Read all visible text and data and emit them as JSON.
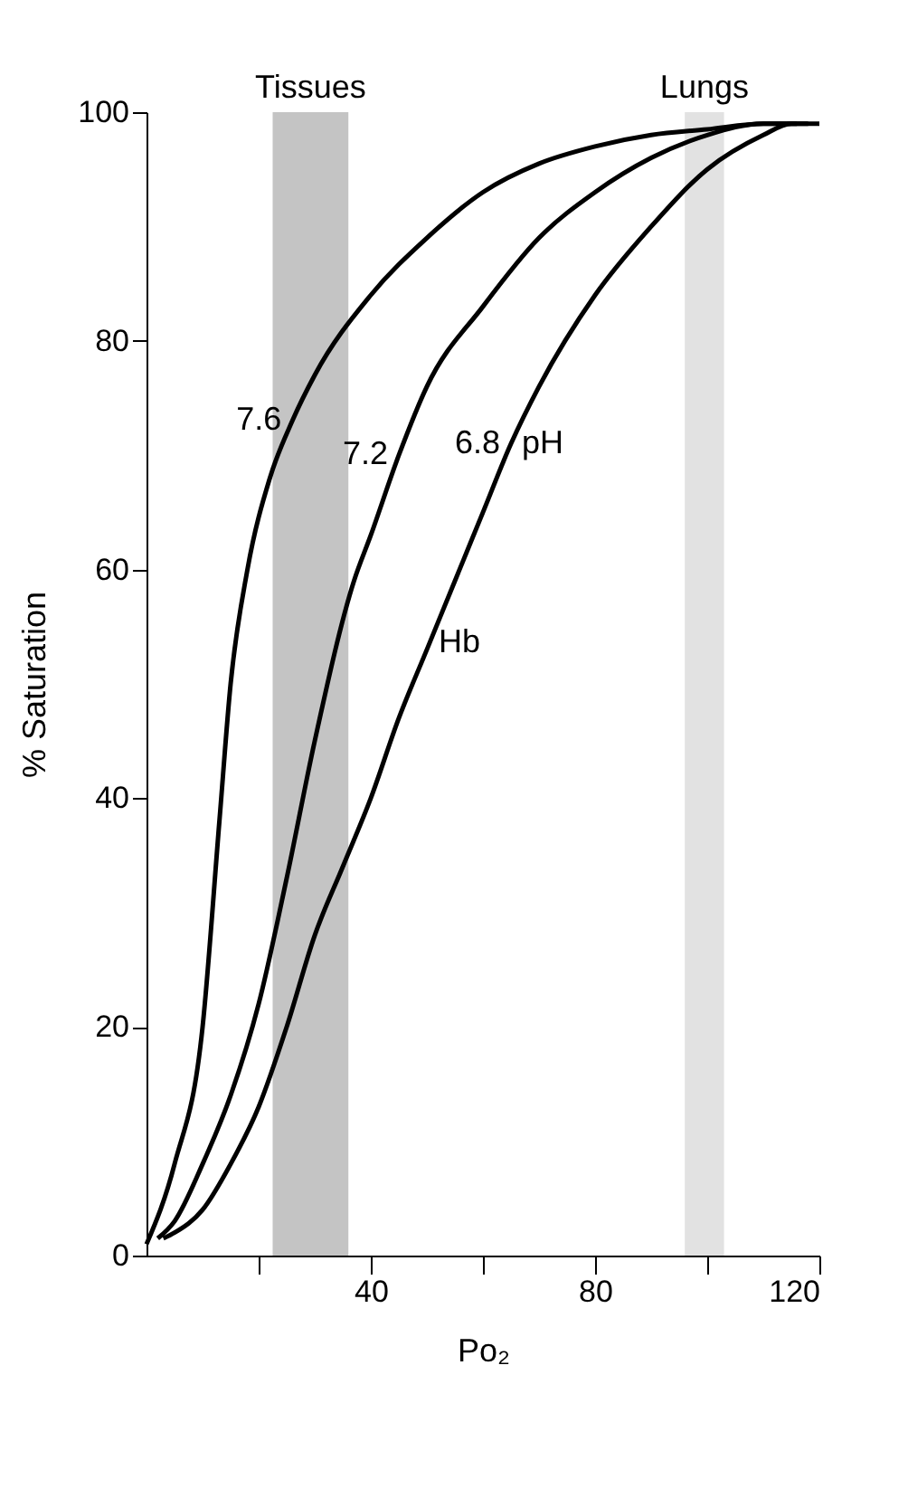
{
  "chart_data": {
    "type": "line",
    "xlabel": "Po₂",
    "ylabel": "% Saturation",
    "xlim": [
      0,
      120
    ],
    "ylim": [
      0,
      100
    ],
    "xticks": [
      {
        "value": 20,
        "label": null
      },
      40,
      {
        "value": 60,
        "label": null
      },
      80,
      {
        "value": 100,
        "label": null
      },
      120
    ],
    "yticks": [
      0,
      20,
      40,
      60,
      80,
      100
    ],
    "grid": false,
    "marker": "none",
    "line_style": "solid",
    "series": [
      {
        "name": "7.6",
        "color": "#000000",
        "x": [
          0,
          5,
          10,
          13,
          15,
          18,
          22,
          26,
          30,
          40,
          50,
          60,
          70,
          80,
          90,
          100,
          110,
          116
        ],
        "values": [
          1,
          8,
          20,
          38,
          50,
          60,
          68,
          73,
          77,
          84,
          89,
          93,
          95.5,
          97,
          98,
          98.5,
          99,
          99
        ]
      },
      {
        "name": "7.2",
        "color": "#000000",
        "x": [
          2,
          5,
          10,
          15,
          20,
          25,
          30,
          37,
          40,
          45,
          50,
          60,
          70,
          80,
          90,
          100,
          110,
          118
        ],
        "values": [
          1.5,
          3,
          8,
          14,
          22,
          33,
          45,
          59,
          63,
          70,
          76,
          83,
          89,
          93,
          96,
          98,
          99,
          99
        ]
      },
      {
        "name": "6.8",
        "color": "#000000",
        "x": [
          3,
          5,
          10,
          15,
          20,
          25,
          30,
          35,
          40,
          45,
          50,
          55,
          60,
          65,
          70,
          80,
          90,
          100,
          110,
          115,
          120
        ],
        "values": [
          1.5,
          2,
          4,
          8,
          13,
          20,
          28,
          34,
          40,
          47,
          53,
          59,
          65,
          71,
          76,
          84,
          90,
          95,
          98,
          99,
          99
        ]
      }
    ],
    "bands": [
      {
        "axis": "x",
        "from": 22.5,
        "to": 36,
        "label": "Tissues",
        "color": "#c4c4c4"
      },
      {
        "axis": "x",
        "from": 96,
        "to": 103,
        "label": "Lungs",
        "color": "#e2e2e2"
      }
    ],
    "annotations": [
      "pH",
      "Hb"
    ]
  }
}
